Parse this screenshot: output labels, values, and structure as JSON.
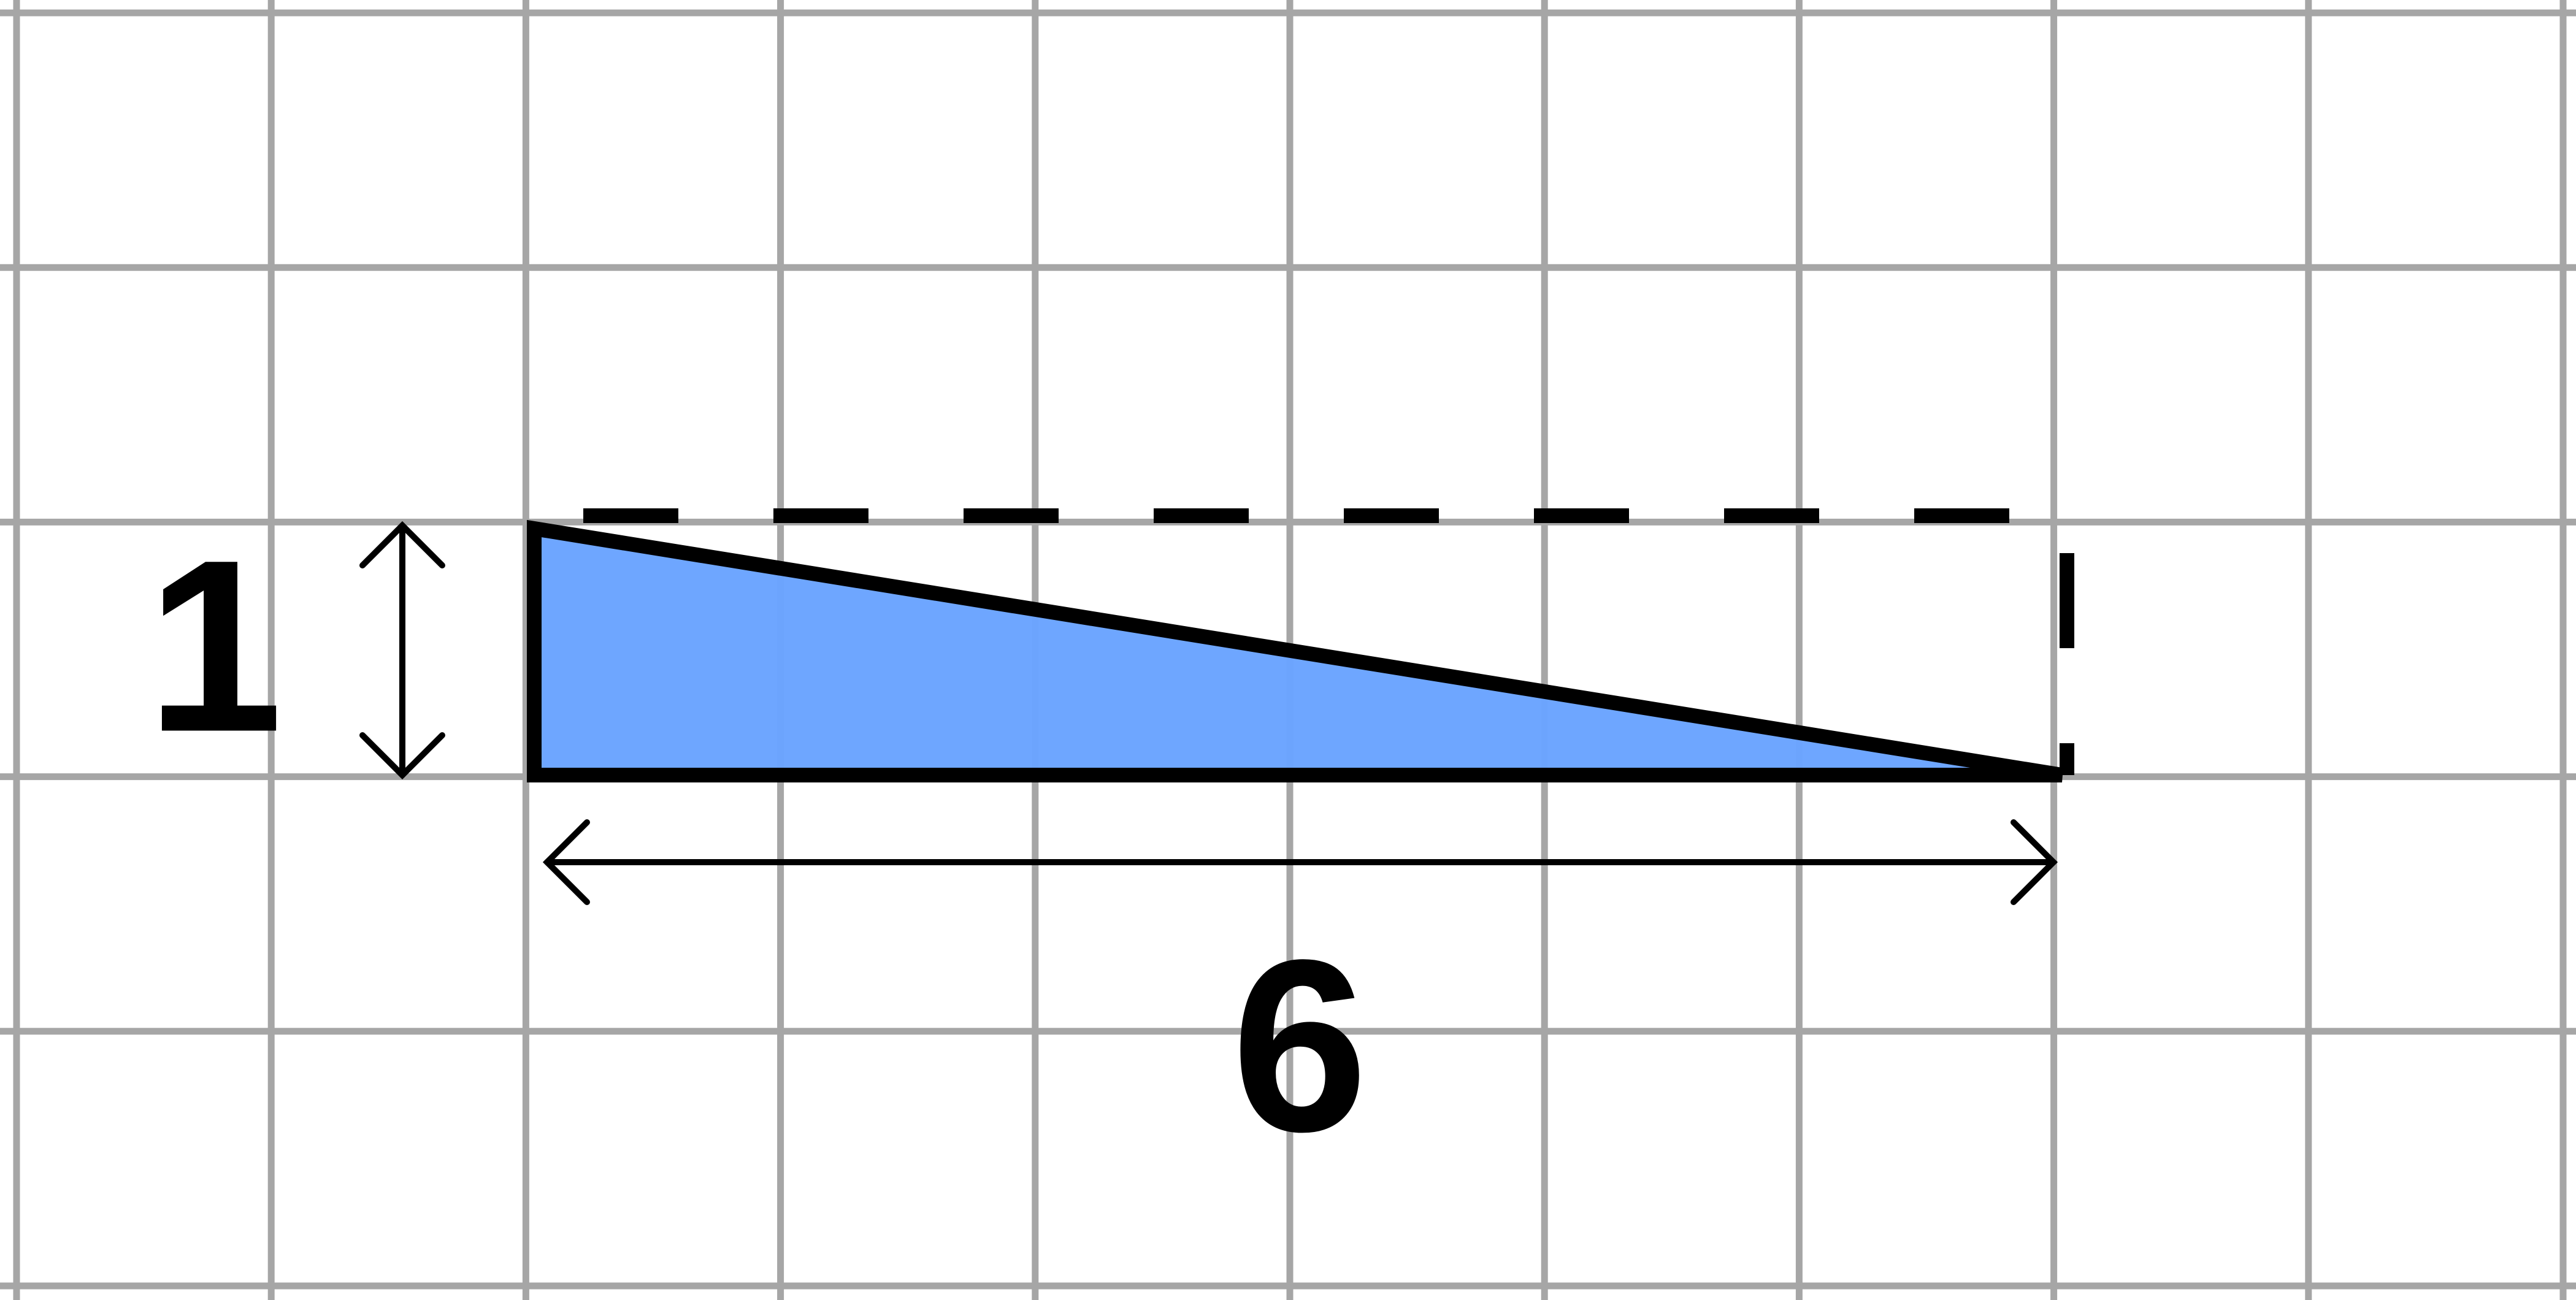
{
  "diagram": {
    "labels": {
      "height": "1",
      "width": "6"
    },
    "triangle": {
      "base": 6,
      "height": 1
    },
    "colors": {
      "grid": "#a6a6a6",
      "fill": "#6ba4ff",
      "stroke": "#000000",
      "background": "#ffffff"
    }
  }
}
